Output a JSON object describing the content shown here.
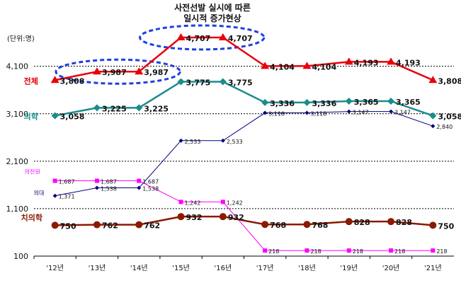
{
  "chart_data": {
    "type": "line",
    "title": [
      "사전선발 실시에 따른",
      "일시적 증가현상"
    ],
    "unit_label": "(단위:명)",
    "categories": [
      "'12년",
      "'13년",
      "'14년",
      "'15년",
      "'16년",
      "'17년",
      "'18년",
      "'19년",
      "'20년",
      "'21년"
    ],
    "yticks": [
      100,
      1100,
      2100,
      3100,
      4100
    ],
    "ylim": [
      100,
      4900
    ],
    "grid": "horizontal-dashed",
    "series": [
      {
        "name": "전체",
        "color": "#e8000b",
        "marker": "triangle",
        "labelStyle": "big",
        "values": [
          3808,
          3987,
          3987,
          4707,
          4707,
          4104,
          4104,
          4193,
          4193,
          3808
        ],
        "labels": [
          "3,808",
          "3,987",
          "3,987",
          "4,707",
          "4,707",
          "4,104",
          "4,104",
          "4,193",
          "4,193",
          "3,808"
        ]
      },
      {
        "name": "의학",
        "color": "#1a8c8c",
        "marker": "diamond",
        "labelStyle": "big",
        "values": [
          3058,
          3225,
          3225,
          3775,
          3775,
          3336,
          3336,
          3365,
          3365,
          3058
        ],
        "labels": [
          "3,058",
          "3,225",
          "3,225",
          "3,775",
          "3,775",
          "3,336",
          "3,336",
          "3,365",
          "3,365",
          "3,058"
        ]
      },
      {
        "name": "의대",
        "color": "#000080",
        "marker": "smalldiamond",
        "labelStyle": "small",
        "values": [
          1371,
          1538,
          1538,
          2533,
          2533,
          3118,
          3118,
          3147,
          3147,
          2840
        ],
        "labels": [
          "1,371",
          "1,538",
          "1,538",
          "2,533",
          "2,533",
          "3,118",
          "3,118",
          "3,147",
          "3,147",
          "2,840"
        ]
      },
      {
        "name": "의전원",
        "color": "#ff00ff",
        "marker": "square",
        "labelStyle": "small",
        "values": [
          1687,
          1687,
          1687,
          1242,
          1242,
          218,
          218,
          218,
          218,
          218
        ],
        "labels": [
          "1,687",
          "1,687",
          "1,687",
          "1,242",
          "1,242",
          "218",
          "218",
          "218",
          "218",
          "218"
        ]
      },
      {
        "name": "치의학",
        "color": "#8b1a00",
        "marker": "circle",
        "labelStyle": "big",
        "values": [
          750,
          762,
          762,
          932,
          932,
          768,
          768,
          828,
          828,
          750
        ],
        "labels": [
          "750",
          "762",
          "762",
          "932",
          "932",
          "768",
          "768",
          "828",
          "828",
          "750"
        ]
      }
    ],
    "highlights": [
      {
        "from": 1,
        "to": 2
      },
      {
        "from": 3,
        "to": 4
      }
    ]
  }
}
